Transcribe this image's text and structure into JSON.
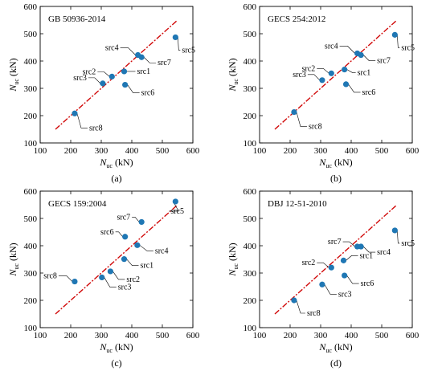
{
  "axis": {
    "x_label_main": "N",
    "x_label_sub": "uc",
    "x_label_unit": " (kN)",
    "y_label_main": "N",
    "y_label_sub": "uc",
    "y_label_unit": " (kN)",
    "x_ticks": [
      "100",
      "200",
      "300",
      "400",
      "500",
      "600"
    ],
    "y_ticks": [
      "100",
      "200",
      "300",
      "400",
      "500",
      "600"
    ]
  },
  "chart_data": [
    {
      "type": "scatter",
      "panel": "(a)",
      "code": "GB 50936-2014",
      "xlim": [
        100,
        600
      ],
      "ylim": [
        100,
        600
      ],
      "reference_line": [
        [
          150,
          150
        ],
        [
          550,
          550
        ]
      ],
      "marker_color": "#1f77b4",
      "line_color": "#d10a0a",
      "points": [
        {
          "name": "src1",
          "x": 375,
          "y": 362
        },
        {
          "name": "src2",
          "x": 335,
          "y": 343
        },
        {
          "name": "src3",
          "x": 305,
          "y": 318
        },
        {
          "name": "src4",
          "x": 420,
          "y": 422
        },
        {
          "name": "src5",
          "x": 543,
          "y": 487
        },
        {
          "name": "src6",
          "x": 378,
          "y": 313
        },
        {
          "name": "src7",
          "x": 432,
          "y": 414
        },
        {
          "name": "src8",
          "x": 213,
          "y": 208
        }
      ]
    },
    {
      "type": "scatter",
      "panel": "(b)",
      "code": "GECS 254:2012",
      "xlim": [
        100,
        600
      ],
      "ylim": [
        100,
        600
      ],
      "reference_line": [
        [
          150,
          150
        ],
        [
          550,
          550
        ]
      ],
      "marker_color": "#1f77b4",
      "line_color": "#d10a0a",
      "points": [
        {
          "name": "src1",
          "x": 378,
          "y": 369
        },
        {
          "name": "src2",
          "x": 335,
          "y": 355
        },
        {
          "name": "src3",
          "x": 305,
          "y": 330
        },
        {
          "name": "src4",
          "x": 420,
          "y": 428
        },
        {
          "name": "src5",
          "x": 543,
          "y": 496
        },
        {
          "name": "src6",
          "x": 383,
          "y": 315
        },
        {
          "name": "src7",
          "x": 432,
          "y": 422
        },
        {
          "name": "src8",
          "x": 213,
          "y": 213
        }
      ]
    },
    {
      "type": "scatter",
      "panel": "(c)",
      "code": "GECS 159:2004",
      "xlim": [
        100,
        600
      ],
      "ylim": [
        100,
        600
      ],
      "reference_line": [
        [
          150,
          150
        ],
        [
          550,
          550
        ]
      ],
      "marker_color": "#1f77b4",
      "line_color": "#d10a0a",
      "points": [
        {
          "name": "src1",
          "x": 375,
          "y": 351
        },
        {
          "name": "src2",
          "x": 330,
          "y": 306
        },
        {
          "name": "src3",
          "x": 302,
          "y": 284
        },
        {
          "name": "src4",
          "x": 418,
          "y": 402
        },
        {
          "name": "src5",
          "x": 543,
          "y": 562
        },
        {
          "name": "src6",
          "x": 378,
          "y": 433
        },
        {
          "name": "src7",
          "x": 432,
          "y": 487
        },
        {
          "name": "src8",
          "x": 213,
          "y": 269
        }
      ]
    },
    {
      "type": "scatter",
      "panel": "(d)",
      "code": "DBJ 12-51-2010",
      "xlim": [
        100,
        600
      ],
      "ylim": [
        100,
        600
      ],
      "reference_line": [
        [
          150,
          150
        ],
        [
          550,
          550
        ]
      ],
      "marker_color": "#1f77b4",
      "line_color": "#d10a0a",
      "points": [
        {
          "name": "src1",
          "x": 375,
          "y": 346
        },
        {
          "name": "src2",
          "x": 335,
          "y": 320
        },
        {
          "name": "src3",
          "x": 305,
          "y": 258
        },
        {
          "name": "src4",
          "x": 432,
          "y": 397
        },
        {
          "name": "src5",
          "x": 543,
          "y": 456
        },
        {
          "name": "src6",
          "x": 378,
          "y": 291
        },
        {
          "name": "src7",
          "x": 420,
          "y": 397
        },
        {
          "name": "src8",
          "x": 213,
          "y": 200
        }
      ]
    }
  ]
}
